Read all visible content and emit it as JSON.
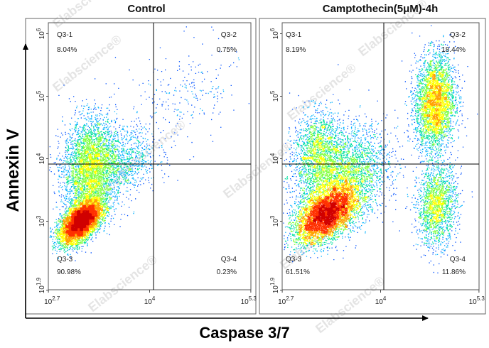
{
  "chart_data": {
    "type": "scatter",
    "subtype": "flow-cytometry-density-dot-plot",
    "xlabel": "Caspase 3/7",
    "ylabel": "Annexin V",
    "x_scale": "log",
    "y_scale": "log",
    "xlim": [
      500,
      200000
    ],
    "ylim": [
      80,
      1500000
    ],
    "x_ticks": [
      {
        "base": "10",
        "exp": "2.7",
        "value": 501
      },
      {
        "base": "10",
        "exp": "4",
        "value": 10000
      },
      {
        "base": "10",
        "exp": "5.3",
        "value": 199526
      }
    ],
    "y_ticks": [
      {
        "base": "10",
        "exp": "1.9",
        "value": 79
      },
      {
        "base": "10",
        "exp": "3",
        "value": 1000
      },
      {
        "base": "10",
        "exp": "4",
        "value": 10000
      },
      {
        "base": "10",
        "exp": "5",
        "value": 100000
      },
      {
        "base": "10",
        "exp": "6",
        "value": 1000000
      }
    ],
    "gate": {
      "x": 10000,
      "y": 7000
    },
    "grid": false,
    "color_scale": [
      "#0000cc",
      "#0050ff",
      "#00b0ff",
      "#00e0a0",
      "#80ff40",
      "#ffff00",
      "#ffa000",
      "#ff3000",
      "#d00000"
    ],
    "panels": [
      {
        "title": "Control",
        "quadrants": [
          {
            "id": "Q3-1",
            "percent": "8.04%",
            "position": "top-left"
          },
          {
            "id": "Q3-2",
            "percent": "0.75%",
            "position": "top-right"
          },
          {
            "id": "Q3-3",
            "percent": "90.98%",
            "position": "bottom-left"
          },
          {
            "id": "Q3-4",
            "percent": "0.23%",
            "position": "bottom-right"
          }
        ],
        "populations": [
          {
            "x": 1300,
            "y": 1000,
            "sx": 0.13,
            "sy": 0.17,
            "rho": 0.55,
            "n": 9000
          },
          {
            "x": 1700,
            "y": 7000,
            "sx": 0.17,
            "sy": 0.4,
            "rho": 0.1,
            "n": 3800
          },
          {
            "x": 4500,
            "y": 9000,
            "sx": 0.22,
            "sy": 0.28,
            "rho": 0.2,
            "n": 900
          },
          {
            "x": 25000,
            "y": 90000,
            "sx": 0.38,
            "sy": 0.45,
            "rho": 0.4,
            "n": 260
          }
        ]
      },
      {
        "title": "Camptothecin(5μM)-4h",
        "quadrants": [
          {
            "id": "Q3-1",
            "percent": "8.19%",
            "position": "top-left"
          },
          {
            "id": "Q3-2",
            "percent": "18.44%",
            "position": "top-right"
          },
          {
            "id": "Q3-3",
            "percent": "61.51%",
            "position": "bottom-left"
          },
          {
            "id": "Q3-4",
            "percent": "11.86%",
            "position": "bottom-right"
          }
        ],
        "populations": [
          {
            "x": 1900,
            "y": 1300,
            "sx": 0.2,
            "sy": 0.22,
            "rho": 0.5,
            "n": 8500
          },
          {
            "x": 3000,
            "y": 5000,
            "sx": 0.3,
            "sy": 0.4,
            "rho": 0.3,
            "n": 3500
          },
          {
            "x": 52000,
            "y": 80000,
            "sx": 0.13,
            "sy": 0.38,
            "rho": 0.1,
            "n": 3600
          },
          {
            "x": 55000,
            "y": 1800,
            "sx": 0.13,
            "sy": 0.32,
            "rho": 0.1,
            "n": 1800
          },
          {
            "x": 1400,
            "y": 15000,
            "sx": 0.15,
            "sy": 0.3,
            "rho": 0.1,
            "n": 1300
          }
        ]
      }
    ]
  }
}
